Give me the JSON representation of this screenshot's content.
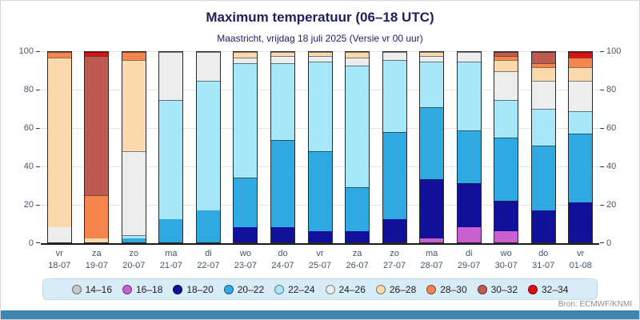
{
  "header": {
    "title": "Maximum temperatuur (06–18 UTC)",
    "subtitle": "Maastricht, vrijdag 18 juli 2025 (Versie vr 00 uur)"
  },
  "footer": {
    "source": "Bron: ECMWF/KNMI"
  },
  "chart_data": {
    "type": "bar",
    "stacked": true,
    "title": "Maximum temperatuur (06–18 UTC)",
    "subtitle": "Maastricht, vrijdag 18 juli 2025 (Versie vr 00 uur)",
    "ylabel": "",
    "xlabel": "",
    "ylim": [
      0,
      100
    ],
    "y_ticks": [
      0,
      20,
      40,
      60,
      80,
      100
    ],
    "grid": true,
    "legend_position": "bottom",
    "categories": [
      {
        "day": "vr",
        "date": "18-07"
      },
      {
        "day": "za",
        "date": "19-07"
      },
      {
        "day": "zo",
        "date": "20-07"
      },
      {
        "day": "ma",
        "date": "21-07"
      },
      {
        "day": "di",
        "date": "22-07"
      },
      {
        "day": "wo",
        "date": "23-07"
      },
      {
        "day": "do",
        "date": "24-07"
      },
      {
        "day": "vr",
        "date": "25-07"
      },
      {
        "day": "za",
        "date": "26-07"
      },
      {
        "day": "zo",
        "date": "27-07"
      },
      {
        "day": "ma",
        "date": "28-07"
      },
      {
        "day": "di",
        "date": "29-07"
      },
      {
        "day": "wo",
        "date": "30-07"
      },
      {
        "day": "do",
        "date": "31-07"
      },
      {
        "day": "vr",
        "date": "01-08"
      }
    ],
    "series": [
      {
        "name": "14–16",
        "color": "#c9c9c9",
        "values": [
          0,
          0,
          0,
          0,
          0,
          0,
          0,
          0,
          0,
          0,
          0,
          0,
          0,
          0,
          0
        ]
      },
      {
        "name": "16–18",
        "color": "#ca5fd1",
        "values": [
          0,
          0,
          0,
          0,
          0,
          0,
          0,
          0,
          0,
          0,
          2,
          8,
          6,
          0,
          0
        ]
      },
      {
        "name": "18–20",
        "color": "#10109b",
        "values": [
          0,
          0,
          0,
          0,
          0,
          8,
          8,
          6,
          6,
          12,
          31,
          23,
          16,
          17,
          21
        ]
      },
      {
        "name": "20–22",
        "color": "#2ea9e2",
        "values": [
          0,
          0,
          2,
          12,
          17,
          26,
          46,
          42,
          23,
          46,
          38,
          28,
          33,
          34,
          36
        ]
      },
      {
        "name": "22–24",
        "color": "#a8e6fa",
        "values": [
          0,
          0,
          2,
          63,
          68,
          60,
          40,
          47,
          64,
          38,
          24,
          36,
          20,
          19,
          12
        ]
      },
      {
        "name": "24–26",
        "color": "#ededed",
        "values": [
          8,
          0,
          44,
          25,
          15,
          3,
          4,
          3,
          4,
          4,
          3,
          5,
          15,
          15,
          16
        ]
      },
      {
        "name": "26–28",
        "color": "#fbd9ad",
        "values": [
          89,
          2,
          48,
          0,
          0,
          3,
          2,
          2,
          3,
          0,
          2,
          0,
          6,
          7,
          7
        ]
      },
      {
        "name": "28–30",
        "color": "#f5854d",
        "values": [
          3,
          23,
          4,
          0,
          0,
          0,
          0,
          0,
          0,
          0,
          0,
          0,
          2,
          2,
          5
        ]
      },
      {
        "name": "30–32",
        "color": "#bd5a52",
        "values": [
          0,
          73,
          0,
          0,
          0,
          0,
          0,
          0,
          0,
          0,
          0,
          0,
          2,
          6,
          0
        ]
      },
      {
        "name": "32–34",
        "color": "#dd1111",
        "values": [
          0,
          2,
          0,
          0,
          0,
          0,
          0,
          0,
          0,
          0,
          0,
          0,
          0,
          0,
          3
        ]
      }
    ]
  }
}
